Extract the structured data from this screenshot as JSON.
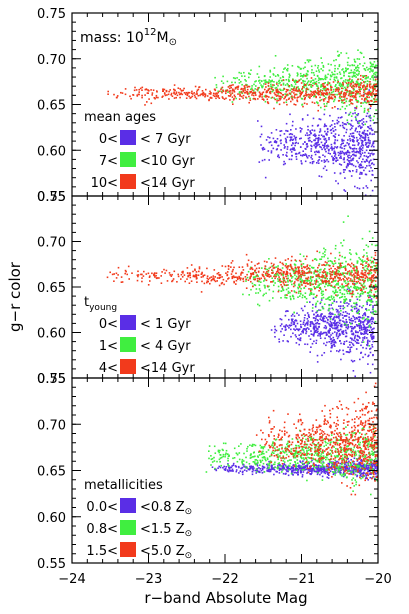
{
  "figure": {
    "ylabel": "g−r color",
    "xlabel": "r−band Absolute Mag"
  },
  "chart_data": [
    {
      "type": "scatter",
      "panel": "top",
      "note": "mass: 10",
      "note_sup": "12",
      "note_sub": "M",
      "note_sun": "⊙",
      "legend_title": "mean ages",
      "xlim": [
        -24,
        -20
      ],
      "ylim": [
        0.55,
        0.75
      ],
      "yticks": [
        "0.55",
        "0.60",
        "0.65",
        "0.70",
        "0.75"
      ],
      "series": [
        {
          "label_lo": "0<",
          "label_hi": "< 7 Gyr",
          "color": "#5a2ee6",
          "x_range": [
            -21.6,
            -20.05
          ],
          "y_mean": 0.605,
          "y_sd": 0.022
        },
        {
          "label_lo": "7<",
          "label_hi": "<10 Gyr",
          "color": "#40ee40",
          "x_range": [
            -22.2,
            -20.0
          ],
          "y_mean": 0.672,
          "y_sd": 0.018
        },
        {
          "label_lo": "10<",
          "label_hi": "<14 Gyr",
          "color": "#f23a1c",
          "x_range": [
            -23.6,
            -20.0
          ],
          "y_mean": 0.662,
          "y_sd": 0.008
        }
      ]
    },
    {
      "type": "scatter",
      "panel": "middle",
      "legend_title": "t",
      "legend_title_sub": "young",
      "xlim": [
        -24,
        -20
      ],
      "ylim": [
        0.55,
        0.75
      ],
      "yticks": [
        "0.55",
        "0.60",
        "0.65",
        "0.70",
        "0.75"
      ],
      "series": [
        {
          "label_lo": "0<",
          "label_hi": "< 1 Gyr",
          "color": "#5a2ee6",
          "x_range": [
            -21.4,
            -20.05
          ],
          "y_mean": 0.607,
          "y_sd": 0.02
        },
        {
          "label_lo": "1<",
          "label_hi": "< 4 Gyr",
          "color": "#40ee40",
          "x_range": [
            -21.8,
            -20.0
          ],
          "y_mean": 0.655,
          "y_sd": 0.024
        },
        {
          "label_lo": "4<",
          "label_hi": "<14 Gyr",
          "color": "#f23a1c",
          "x_range": [
            -23.6,
            -20.0
          ],
          "y_mean": 0.663,
          "y_sd": 0.011
        }
      ]
    },
    {
      "type": "scatter",
      "panel": "bottom",
      "legend_title": "metallicities",
      "xlim": [
        -24,
        -20
      ],
      "ylim": [
        0.55,
        0.75
      ],
      "yticks": [
        "0.55",
        "0.60",
        "0.65",
        "0.70",
        "0.75"
      ],
      "xticks": [
        "−24",
        "−23",
        "−22",
        "−21",
        "−20"
      ],
      "series": [
        {
          "label_lo": "0.0<",
          "label_hi": "<0.8 Z",
          "color": "#5a2ee6",
          "x_range": [
            -22.2,
            -20.0
          ],
          "y_mean": 0.652,
          "y_sd": 0.005
        },
        {
          "label_lo": "0.8<",
          "label_hi": "<1.5 Z",
          "color": "#40ee40",
          "x_range": [
            -22.4,
            -20.0
          ],
          "y_mean": 0.666,
          "y_sd": 0.015
        },
        {
          "label_lo": "1.5<",
          "label_hi": "<5.0 Z",
          "color": "#f23a1c",
          "x_range": [
            -21.6,
            -20.0
          ],
          "y_mean": 0.68,
          "y_sd": 0.025
        }
      ],
      "label_sun": "⊙"
    }
  ]
}
